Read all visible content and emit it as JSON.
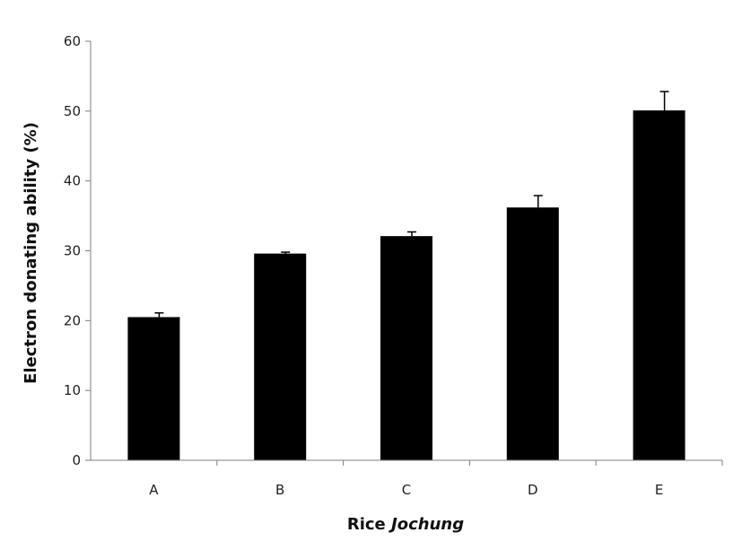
{
  "chart_data": {
    "type": "bar",
    "categories": [
      "A",
      "B",
      "C",
      "D",
      "E"
    ],
    "values": [
      20.5,
      29.6,
      32.1,
      36.2,
      50.1
    ],
    "errors": [
      0.6,
      0.2,
      0.6,
      1.7,
      2.7
    ],
    "ylim": [
      0,
      60
    ],
    "yticks": [
      0,
      10,
      20,
      30,
      40,
      50,
      60
    ],
    "ylabel": "Electron donating ability (%)",
    "xlabel_main": "Rice",
    "xlabel_italic": "Jochung",
    "bar_color": "#000000",
    "grid": false
  }
}
